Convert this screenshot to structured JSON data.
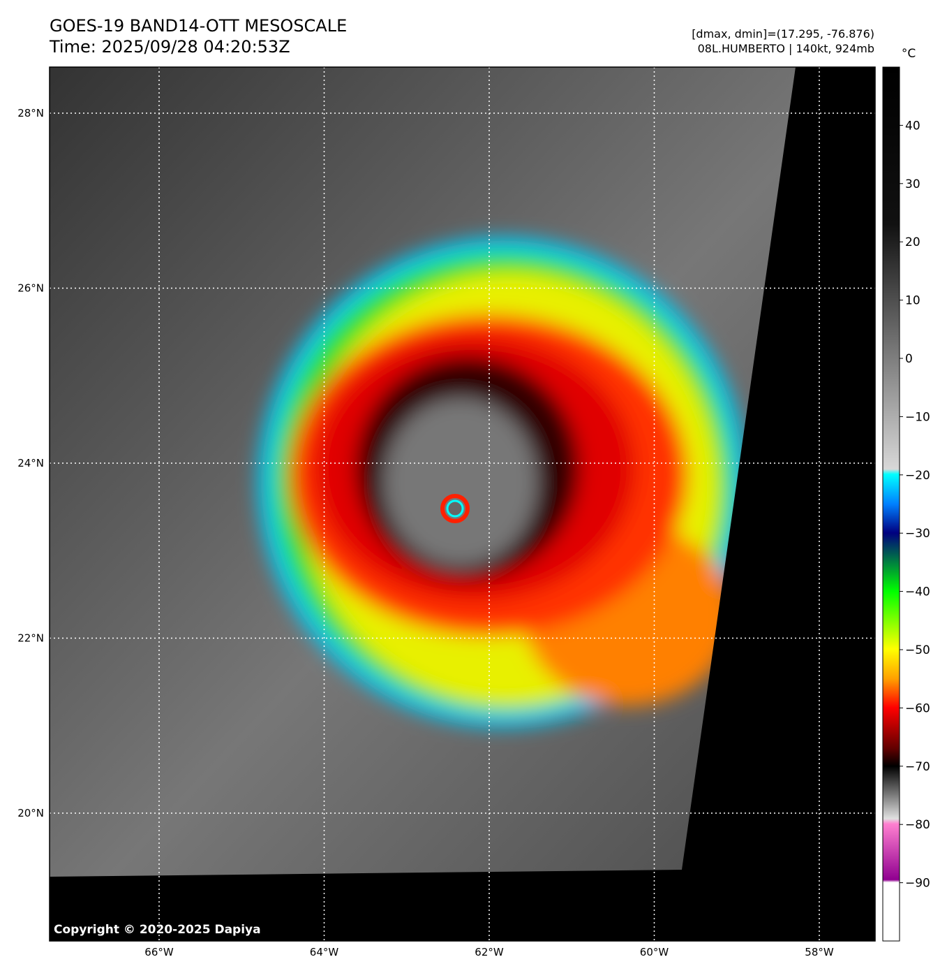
{
  "header": {
    "title": "GOES-19 BAND14-OTT MESOSCALE",
    "time": "Time: 2025/09/28 04:20:53Z",
    "info": [
      "[dmax, dmin]=(17.295, -76.876)",
      "08L.HUMBERTO | 140kt, 924mb"
    ]
  },
  "map": {
    "latitude_labels": [
      "28°N",
      "26°N",
      "24°N",
      "22°N",
      "20°N"
    ],
    "longitude_labels": [
      "66°W",
      "64°W",
      "62°W",
      "60°W",
      "58°W"
    ],
    "copyright": "Copyright © 2020-2025 Dapiya"
  },
  "colorbar": {
    "unit": "°C",
    "range": [
      -100,
      50
    ],
    "ticks": [
      40,
      30,
      20,
      10,
      0,
      {
        "value": -10,
        "label": "−10"
      },
      {
        "value": -20,
        "label": "−20"
      },
      {
        "value": -30,
        "label": "−30"
      },
      {
        "value": -40,
        "label": "−40"
      },
      {
        "value": -50,
        "label": "−50"
      },
      {
        "value": -60,
        "label": "−60"
      },
      {
        "value": -70,
        "label": "−70"
      },
      {
        "value": -80,
        "label": "−80"
      },
      {
        "value": -90,
        "label": "−90"
      }
    ]
  }
}
